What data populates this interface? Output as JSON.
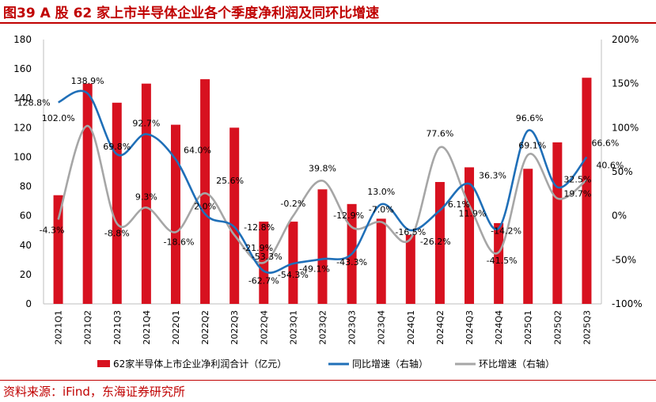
{
  "title": "图39  A 股 62 家上市半导体企业各个季度净利润及同环比增速",
  "source": "资料来源：iFind，东海证券研究所",
  "colors": {
    "bar": "#d7111f",
    "yoy": "#1f6fb8",
    "qoq": "#a6a6a6",
    "accent": "#c00000"
  },
  "chart_data": {
    "type": "bar",
    "categories": [
      "2021Q1",
      "2021Q2",
      "2021Q3",
      "2021Q4",
      "2022Q1",
      "2022Q2",
      "2022Q3",
      "2022Q4",
      "2023Q1",
      "2023Q2",
      "2023Q3",
      "2023Q4",
      "2024Q1",
      "2024Q2",
      "2024Q3",
      "2024Q4",
      "2025Q1",
      "2025Q2",
      "2025Q3"
    ],
    "series": [
      {
        "name": "62家半导体上市企业净利润合计（亿元）",
        "type": "bar",
        "axis": "left",
        "values": [
          74,
          150,
          137,
          150,
          122,
          153,
          120,
          56,
          56,
          78,
          68,
          58,
          47,
          83,
          93,
          55,
          92,
          110,
          154
        ]
      },
      {
        "name": "同比增速（右轴）",
        "type": "line",
        "axis": "right",
        "values": [
          128.8,
          138.9,
          69.8,
          92.7,
          64.0,
          2.0,
          -12.8,
          -62.7,
          -54.3,
          -49.1,
          -43.3,
          13.0,
          -16.5,
          6.1,
          36.3,
          -14.2,
          96.6,
          32.5,
          66.6
        ],
        "labels": [
          "128.8%",
          "138.9%",
          "69.8%",
          "92.7%",
          "64.0%",
          "2.0%",
          "-12.8%",
          "-62.7%",
          "-54.3%",
          "-49.1%",
          "-43.3%",
          "13.0%",
          "-16.5%",
          "6.1%",
          "36.3%",
          "-14.2%",
          "96.6%",
          "32.5%",
          "66.6%"
        ]
      },
      {
        "name": "环比增速（右轴）",
        "type": "line",
        "axis": "right",
        "values": [
          -4.3,
          102.0,
          -8.8,
          9.3,
          -18.6,
          25.6,
          -21.9,
          -53.3,
          -0.2,
          39.8,
          -12.9,
          -7.0,
          -26.2,
          77.6,
          11.9,
          -41.5,
          69.1,
          19.7,
          40.6
        ],
        "labels": [
          "-4.3%",
          "102.0%",
          "-8.8%",
          "9.3%",
          "-18.6%",
          "25.6%",
          "-21.9%",
          "-53.3%",
          "-0.2%",
          "39.8%",
          "-12.9%",
          "-7.0%",
          "-26.2%",
          "77.6%",
          "11.9%",
          "-41.5%",
          "69.1%",
          "19.7%",
          "40.6%"
        ]
      }
    ],
    "y_left": {
      "range": [
        0,
        180
      ],
      "ticks": [
        "0",
        "20",
        "40",
        "60",
        "80",
        "100",
        "120",
        "140",
        "160",
        "180"
      ]
    },
    "y_right": {
      "range": [
        -100,
        200
      ],
      "ticks": [
        "-100%",
        "-50%",
        "0%",
        "50%",
        "100%",
        "150%",
        "200%"
      ]
    },
    "grid": false,
    "legend_position": "bottom"
  }
}
